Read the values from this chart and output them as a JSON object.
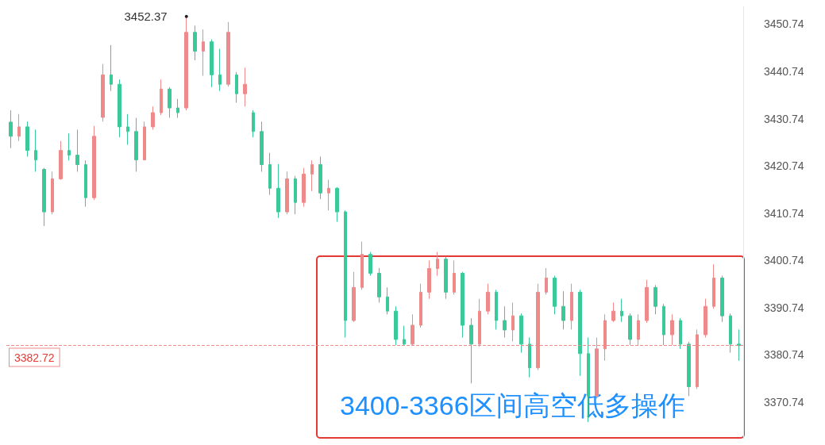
{
  "chart_data": {
    "type": "candlestick",
    "categories": [
      null,
      null,
      null,
      null,
      null,
      null,
      null,
      null,
      null,
      null,
      null,
      null,
      null,
      null,
      null,
      null,
      null,
      null,
      null,
      null,
      null,
      null,
      null,
      null,
      null,
      null,
      null,
      null,
      null,
      null,
      null,
      null,
      null,
      null,
      null,
      null,
      null,
      null,
      null,
      null,
      null,
      null,
      null,
      null,
      null,
      null,
      null,
      null,
      null,
      null,
      null,
      null,
      null,
      null,
      null,
      null,
      null,
      null,
      null,
      null,
      null,
      null,
      null,
      null,
      null,
      null,
      null,
      null,
      null,
      null,
      null,
      null,
      null,
      null,
      null,
      null,
      null,
      null,
      null,
      null,
      null,
      null,
      null,
      null,
      null,
      null,
      null,
      null
    ],
    "ohlc": [
      [
        3430,
        3432.5,
        3424.5,
        3427
      ],
      [
        3427,
        3431.7,
        3426,
        3429
      ],
      [
        3429,
        3430.1,
        3422.7,
        3424
      ],
      [
        3424,
        3428.4,
        3419.5,
        3422
      ],
      [
        3420,
        3420.3,
        3408,
        3411
      ],
      [
        3411,
        3419.5,
        3410.5,
        3418
      ],
      [
        3418,
        3426,
        3417.8,
        3424
      ],
      [
        3424,
        3427.6,
        3421.9,
        3423
      ],
      [
        3423,
        3428.4,
        3419.5,
        3421
      ],
      [
        3421,
        3421.9,
        3412.1,
        3414
      ],
      [
        3414,
        3429.2,
        3413.5,
        3427
      ],
      [
        3431,
        3442.3,
        3430.1,
        3440
      ],
      [
        3440,
        3446.3,
        3436.6,
        3438
      ],
      [
        3438,
        3439,
        3426.8,
        3429
      ],
      [
        3429,
        3431.7,
        3425.2,
        3428
      ],
      [
        3428,
        3430.9,
        3419.5,
        3422
      ],
      [
        3422,
        3430.1,
        3421.9,
        3429
      ],
      [
        3429,
        3433.3,
        3428.4,
        3432
      ],
      [
        3432,
        3439,
        3431.5,
        3437
      ],
      [
        3437,
        3437.4,
        3430.9,
        3433
      ],
      [
        3433,
        3434.9,
        3430.9,
        3432
      ],
      [
        3433,
        3452.37,
        3432.5,
        3449
      ],
      [
        3449,
        3450.4,
        3443.1,
        3445
      ],
      [
        3445,
        3449.6,
        3439.8,
        3447
      ],
      [
        3447,
        3447.5,
        3437.4,
        3440
      ],
      [
        3440,
        3445.5,
        3436.6,
        3438
      ],
      [
        3438,
        3451.2,
        3437.5,
        3449
      ],
      [
        3440,
        3440.6,
        3434.1,
        3436
      ],
      [
        3436,
        3441.5,
        3433.3,
        3438
      ],
      [
        3432,
        3432.5,
        3426.8,
        3428
      ],
      [
        3428,
        3430.1,
        3419.5,
        3421
      ],
      [
        3421,
        3423.5,
        3414.6,
        3416
      ],
      [
        3416,
        3421.1,
        3409.7,
        3411
      ],
      [
        3411,
        3419.5,
        3410.5,
        3418
      ],
      [
        3418,
        3418.6,
        3410.5,
        3413
      ],
      [
        3413,
        3420.3,
        3412.1,
        3419
      ],
      [
        3419,
        3421.9,
        3415.4,
        3421
      ],
      [
        3421,
        3422.7,
        3413.7,
        3415
      ],
      [
        3415,
        3417.8,
        3411.3,
        3416
      ],
      [
        3416,
        3416.2,
        3408.9,
        3411
      ],
      [
        3411,
        3411.3,
        3384.4,
        3388
      ],
      [
        3388,
        3398.3,
        3387.7,
        3395
      ],
      [
        3395,
        3404.7,
        3394.5,
        3402
      ],
      [
        3402,
        3402.5,
        3397.5,
        3398
      ],
      [
        3398,
        3399.1,
        3391.8,
        3393
      ],
      [
        3393,
        3395,
        3389.3,
        3390
      ],
      [
        3390,
        3391,
        3382.8,
        3384
      ],
      [
        3384,
        3386.9,
        3382.8,
        3383
      ],
      [
        3383,
        3389.3,
        3382.8,
        3387
      ],
      [
        3387,
        3395.8,
        3386.5,
        3394
      ],
      [
        3394,
        3400.7,
        3392.6,
        3399
      ],
      [
        3399,
        3402.5,
        3397.5,
        3401
      ],
      [
        3401,
        3401.5,
        3392.6,
        3394
      ],
      [
        3394,
        3400.7,
        3393.5,
        3398
      ],
      [
        3398,
        3398.3,
        3384.4,
        3387
      ],
      [
        3387,
        3388.5,
        3374.7,
        3383
      ],
      [
        3383,
        3392.6,
        3382.5,
        3390
      ],
      [
        3390,
        3395.8,
        3389.3,
        3394
      ],
      [
        3394,
        3394.5,
        3386.1,
        3388
      ],
      [
        3388,
        3391,
        3384.4,
        3386
      ],
      [
        3386,
        3391.8,
        3383.6,
        3389
      ],
      [
        3389,
        3389.5,
        3381.2,
        3383
      ],
      [
        3383,
        3384.4,
        3376,
        3378
      ],
      [
        3378,
        3395.8,
        3377.5,
        3394
      ],
      [
        3394,
        3399.1,
        3393.5,
        3397
      ],
      [
        3397,
        3397.5,
        3389.3,
        3391
      ],
      [
        3391,
        3394.2,
        3386.1,
        3388
      ],
      [
        3388,
        3395.8,
        3386.1,
        3394
      ],
      [
        3394,
        3394.5,
        3376.3,
        3381
      ],
      [
        3381,
        3384.4,
        3366.5,
        3372
      ],
      [
        3372,
        3384.4,
        3371.5,
        3382
      ],
      [
        3382,
        3389.3,
        3379.5,
        3388
      ],
      [
        3388,
        3391.8,
        3387.7,
        3390
      ],
      [
        3390,
        3392.6,
        3387.7,
        3389
      ],
      [
        3389,
        3389.5,
        3382.8,
        3384
      ],
      [
        3384,
        3389.3,
        3382.8,
        3388
      ],
      [
        3388,
        3396.6,
        3387.5,
        3395
      ],
      [
        3395,
        3395.5,
        3389.3,
        3391
      ],
      [
        3391,
        3391.5,
        3382.8,
        3385
      ],
      [
        3385,
        3389.3,
        3382.8,
        3388
      ],
      [
        3388,
        3388.5,
        3382,
        3383
      ],
      [
        3383,
        3383.5,
        3372,
        3374
      ],
      [
        3374,
        3386.1,
        3373.5,
        3385
      ],
      [
        3385,
        3392.6,
        3384.4,
        3391
      ],
      [
        3391,
        3399.9,
        3390.5,
        3397
      ],
      [
        3397,
        3397.5,
        3387.7,
        3389
      ],
      [
        3389,
        3389.5,
        3381.2,
        3383
      ],
      [
        3383,
        3386.1,
        3379.5,
        3382.72
      ]
    ],
    "ylim": [
      3363,
      3454.5
    ],
    "yticks": [
      3370.74,
      3380.74,
      3390.74,
      3400.74,
      3410.74,
      3420.74,
      3430.74,
      3440.74,
      3450.74
    ],
    "tick_labels": "y",
    "grid": false,
    "ref_lines": [
      {
        "axis": "y",
        "value": 3382.72,
        "label": "3382.72",
        "color": "#ef8a8a",
        "line_style": "dashed"
      }
    ],
    "annotations": [
      "3452.37",
      "3400-3366区间高空低多操作"
    ]
  }
}
